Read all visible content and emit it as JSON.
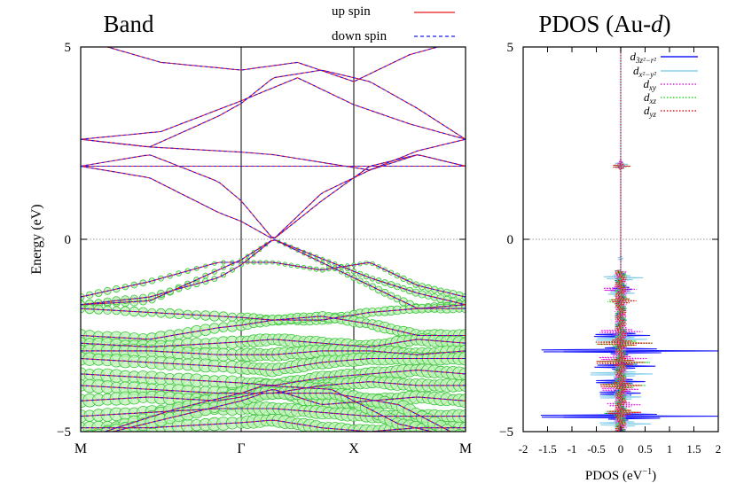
{
  "chart_data": [
    {
      "type": "line",
      "title": "Band",
      "xlabel": "",
      "ylabel": "Energy (eV)",
      "ylim": [
        -5,
        5
      ],
      "xticks": [
        "M",
        "Γ",
        "X",
        "M"
      ],
      "yticks": [
        "−5",
        "0",
        "5"
      ],
      "grid": false,
      "fermi_line": 0,
      "legend_position": "top",
      "legend": [
        {
          "label": "up spin",
          "color": "#e8161b",
          "style": "solid"
        },
        {
          "label": "down spin",
          "color": "#1a1aff",
          "style": "dashed"
        }
      ],
      "k_nodes": [
        0,
        1,
        2,
        3
      ],
      "series": [
        {
          "energies": [
            2.6,
            2.8,
            3.6,
            4.2,
            3.5,
            3.0,
            2.6
          ]
        },
        {
          "energies": [
            2.6,
            2.4,
            3.2,
            4.2,
            4.4,
            4.1,
            3.4,
            2.6
          ]
        },
        {
          "energies": [
            1.9,
            1.9,
            1.9,
            1.9,
            1.9,
            1.9,
            1.9
          ]
        },
        {
          "energies": [
            1.9,
            2.2,
            1.5,
            0.0,
            1.2,
            1.8,
            2.2,
            1.9
          ]
        },
        {
          "energies": [
            1.9,
            1.6,
            0.7,
            0.0,
            1.0,
            1.9,
            2.2,
            1.9
          ]
        },
        {
          "energies": [
            2.6,
            2.4,
            2.3,
            2.2,
            2.0,
            1.8,
            2.3,
            2.6
          ]
        },
        {
          "energies": [
            5.2,
            4.6,
            4.4,
            4.6,
            4.1,
            4.8,
            5.2
          ]
        },
        {
          "energies": [
            -1.7,
            -1.6,
            -0.8,
            0.0,
            -0.5,
            -1.0,
            -1.4,
            -1.7
          ]
        },
        {
          "energies": [
            -1.7,
            -1.5,
            -1.0,
            0.0,
            -0.6,
            -1.2,
            -1.8,
            -1.7
          ]
        },
        {
          "energies": [
            -1.5,
            -1.1,
            -0.6,
            -0.6,
            -0.8,
            -0.6,
            -1.2,
            -1.5
          ]
        },
        {
          "energies": [
            -1.8,
            -1.9,
            -2.0,
            -2.1,
            -2.1,
            -1.9,
            -1.8,
            -1.8
          ]
        },
        {
          "energies": [
            -2.5,
            -2.6,
            -2.3,
            -2.1,
            -2.0,
            -2.2,
            -2.5,
            -2.5
          ]
        },
        {
          "energies": [
            -2.7,
            -2.8,
            -2.7,
            -2.6,
            -2.7,
            -2.8,
            -2.6,
            -2.7
          ]
        },
        {
          "energies": [
            -2.9,
            -2.9,
            -3.0,
            -3.0,
            -2.9,
            -2.9,
            -3.0,
            -2.9
          ]
        },
        {
          "energies": [
            -3.1,
            -3.2,
            -3.3,
            -3.4,
            -3.2,
            -3.1,
            -3.1,
            -3.1
          ]
        },
        {
          "energies": [
            -3.5,
            -3.6,
            -3.7,
            -3.8,
            -3.6,
            -3.5,
            -3.4,
            -3.5
          ]
        },
        {
          "energies": [
            -3.8,
            -3.9,
            -4.0,
            -4.0,
            -3.8,
            -3.7,
            -3.8,
            -3.8
          ]
        },
        {
          "energies": [
            -4.2,
            -4.1,
            -4.2,
            -3.9,
            -4.3,
            -4.2,
            -4.1,
            -4.2
          ]
        },
        {
          "energies": [
            -4.6,
            -4.5,
            -4.4,
            -4.4,
            -4.5,
            -4.6,
            -4.6,
            -4.6
          ]
        },
        {
          "energies": [
            -4.9,
            -4.9,
            -4.8,
            -4.7,
            -4.9,
            -5.0,
            -4.9,
            -4.9
          ]
        },
        {
          "energies": [
            -5.2,
            -4.4,
            -3.8,
            -3.9,
            -4.8,
            -5.2
          ]
        },
        {
          "energies": [
            -5.2,
            -4.6,
            -4.0,
            -4.0,
            -4.3,
            -5.2
          ]
        }
      ]
    },
    {
      "type": "line",
      "title": "PDOS (Au-",
      "title_italic": "d",
      "title_close": ")",
      "xlabel": "PDOS (eV",
      "xlabel_sup": "−1",
      "xlabel_close": ")",
      "ylabel": "",
      "xlim": [
        -2,
        2
      ],
      "ylim": [
        -5,
        5
      ],
      "xticks": [
        "-2",
        "-1.5",
        "-1",
        "-0.5",
        "0",
        "0.5",
        "1",
        "1.5",
        "2"
      ],
      "yticks": [
        "−5",
        "0",
        "5"
      ],
      "grid": false,
      "fermi_line": 0,
      "legend_position": "top-right",
      "series": [
        {
          "name": "d3z²−r²",
          "color": "#1a1aff",
          "style": "solid",
          "peaks": [
            [
              -2.9,
              1.95
            ],
            [
              -4.6,
              1.95
            ],
            [
              -2.5,
              0.55
            ],
            [
              -3.3,
              0.6
            ],
            [
              -3.7,
              0.5
            ],
            [
              -4.0,
              0.4
            ],
            [
              1.9,
              0.1
            ],
            [
              -1.3,
              0.15
            ]
          ]
        },
        {
          "name": "dx²−y²",
          "color": "#87ceeb",
          "style": "solid",
          "peaks": [
            [
              -1.0,
              0.35
            ],
            [
              -1.4,
              0.2
            ],
            [
              -2.6,
              0.5
            ],
            [
              -3.5,
              0.65
            ],
            [
              -4.1,
              0.4
            ],
            [
              -4.8,
              0.5
            ],
            [
              1.95,
              0.15
            ],
            [
              -0.5,
              0.05
            ]
          ]
        },
        {
          "name": "dxy",
          "color": "#e020e0",
          "style": "dotted",
          "peaks": [
            [
              -1.3,
              0.3
            ],
            [
              -2.4,
              0.4
            ],
            [
              -3.1,
              0.45
            ],
            [
              -3.9,
              0.35
            ],
            [
              -4.3,
              0.3
            ],
            [
              2.0,
              0.05
            ]
          ]
        },
        {
          "name": "dxz",
          "color": "#22dd22",
          "style": "dotted",
          "peaks": [
            [
              -1.6,
              0.2
            ],
            [
              -2.7,
              0.55
            ],
            [
              -3.2,
              0.5
            ],
            [
              -3.8,
              0.4
            ],
            [
              -4.5,
              0.3
            ],
            [
              1.9,
              0.2
            ]
          ]
        },
        {
          "name": "dyz",
          "color": "#e8161b",
          "style": "dotted",
          "peaks": [
            [
              -1.6,
              0.2
            ],
            [
              -2.7,
              0.55
            ],
            [
              -3.2,
              0.5
            ],
            [
              -3.8,
              0.4
            ],
            [
              -4.5,
              0.3
            ],
            [
              1.9,
              0.2
            ]
          ]
        }
      ]
    }
  ]
}
